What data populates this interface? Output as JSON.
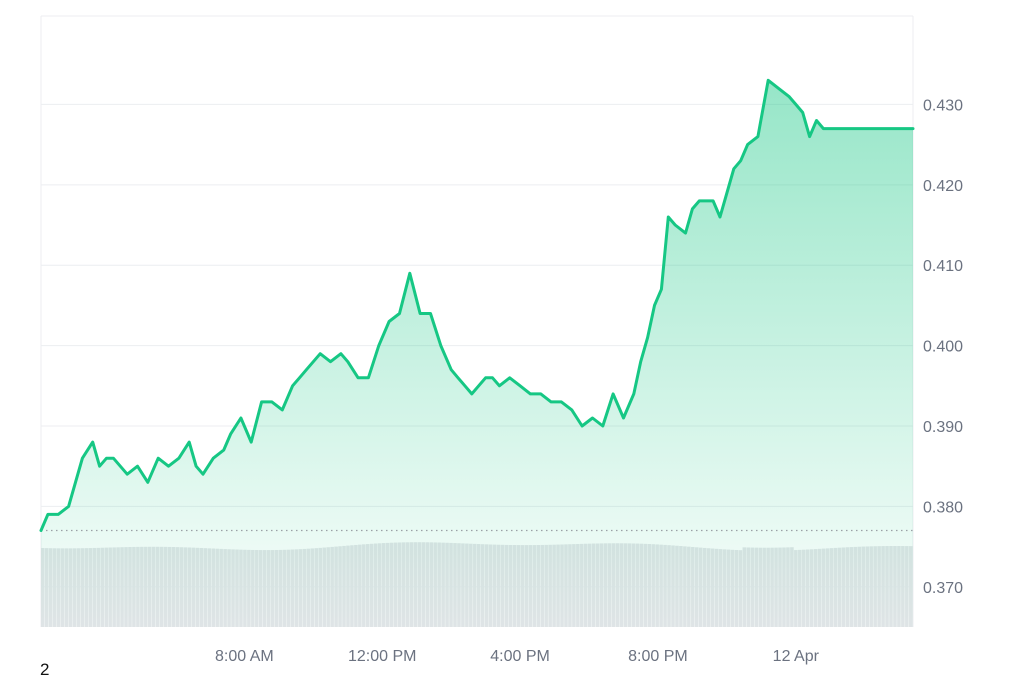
{
  "chart_data": {
    "type": "area",
    "title": "",
    "xlabel": "",
    "ylabel": "",
    "ylim": [
      0.365,
      0.441
    ],
    "y_ticks": [
      0.37,
      0.38,
      0.39,
      0.4,
      0.41,
      0.42,
      0.43
    ],
    "y_tick_labels": [
      "0.370",
      "0.380",
      "0.390",
      "0.400",
      "0.410",
      "0.420",
      "0.430"
    ],
    "x_tick_labels": [
      "8:00 AM",
      "12:00 PM",
      "4:00 PM",
      "8:00 PM",
      "12 Apr"
    ],
    "x_tick_hours": [
      8,
      12,
      16,
      20,
      24
    ],
    "x_range_hours": [
      2.1,
      27.4
    ],
    "reference_line": 0.377,
    "grid": true,
    "series": [
      {
        "x": [
          2.1,
          2.3,
          2.6,
          2.9,
          3.1,
          3.3,
          3.6,
          3.8,
          4.0,
          4.2,
          4.4,
          4.6,
          4.9,
          5.2,
          5.5,
          5.8,
          6.1,
          6.4,
          6.6,
          6.8,
          7.1,
          7.4,
          7.6,
          7.9,
          8.2,
          8.5,
          8.8,
          9.1,
          9.4,
          9.6,
          9.8,
          10.0,
          10.2,
          10.5,
          10.8,
          11.0,
          11.3,
          11.6,
          11.9,
          12.2,
          12.5,
          12.8,
          13.1,
          13.4,
          13.7,
          14.0,
          14.2,
          14.4,
          14.6,
          14.8,
          15.0,
          15.2,
          15.4,
          15.7,
          16.0,
          16.3,
          16.6,
          16.9,
          17.2,
          17.5,
          17.8,
          18.1,
          18.4,
          18.7,
          19.0,
          19.3,
          19.5,
          19.7,
          19.9,
          20.1,
          20.3,
          20.5,
          20.8,
          21.0,
          21.2,
          21.4,
          21.6,
          21.8,
          22.0,
          22.2,
          22.4,
          22.6,
          22.9,
          23.2,
          23.5,
          23.8,
          24.0,
          24.2,
          24.4,
          24.6,
          24.8,
          25.0,
          25.2,
          25.4,
          25.6,
          25.8,
          26.0,
          26.2,
          26.4,
          26.6,
          26.8,
          27.0,
          27.2,
          27.4
        ],
        "values": [
          0.377,
          0.379,
          0.379,
          0.38,
          0.383,
          0.386,
          0.388,
          0.385,
          0.386,
          0.386,
          0.385,
          0.384,
          0.385,
          0.383,
          0.386,
          0.385,
          0.386,
          0.388,
          0.385,
          0.384,
          0.386,
          0.387,
          0.389,
          0.391,
          0.388,
          0.393,
          0.393,
          0.392,
          0.395,
          0.396,
          0.397,
          0.398,
          0.399,
          0.398,
          0.399,
          0.398,
          0.396,
          0.396,
          0.4,
          0.403,
          0.404,
          0.409,
          0.404,
          0.404,
          0.4,
          0.397,
          0.396,
          0.395,
          0.394,
          0.395,
          0.396,
          0.396,
          0.395,
          0.396,
          0.395,
          0.394,
          0.394,
          0.393,
          0.393,
          0.392,
          0.39,
          0.391,
          0.39,
          0.394,
          0.391,
          0.394,
          0.398,
          0.401,
          0.405,
          0.407,
          0.416,
          0.415,
          0.414,
          0.417,
          0.418,
          0.418,
          0.418,
          0.416,
          0.419,
          0.422,
          0.423,
          0.425,
          0.426,
          0.433,
          0.432,
          0.431,
          0.43,
          0.429,
          0.426,
          0.428,
          0.427,
          0.427,
          0.427,
          0.427,
          0.427,
          0.427,
          0.427,
          0.427,
          0.427,
          0.427,
          0.427,
          0.427,
          0.427,
          0.427
        ]
      }
    ],
    "volume_bars": 220,
    "colors": {
      "line": "#16c784",
      "fill_top": "#16c784",
      "grid": "#eceef1",
      "volume": "#e3e5e8",
      "reference": "#9aa0a6"
    }
  },
  "corner_label": "2"
}
